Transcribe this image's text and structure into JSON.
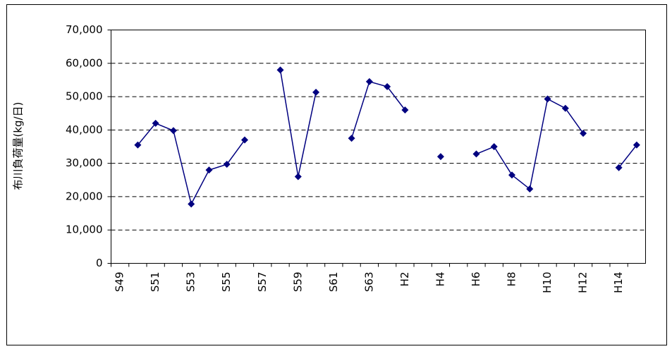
{
  "chart_data": {
    "type": "line",
    "y_label": "布川負荷量(kg/日)",
    "categories": [
      "S49",
      null,
      "S51",
      null,
      "S53",
      null,
      "S55",
      null,
      "S57",
      null,
      "S59",
      null,
      "S61",
      null,
      "S63",
      null,
      "H2",
      null,
      "H4",
      null,
      "H6",
      null,
      "H8",
      null,
      "H10",
      null,
      "H12",
      null,
      "H14",
      null
    ],
    "values": [
      null,
      35500,
      42000,
      39800,
      17800,
      28000,
      29700,
      37000,
      null,
      58000,
      26000,
      51300,
      null,
      37500,
      54500,
      53000,
      46000,
      null,
      32000,
      null,
      32800,
      35000,
      26500,
      22300,
      49300,
      46500,
      39000,
      null,
      28700,
      35500
    ],
    "color": "#000080",
    "ylim": [
      0,
      70000
    ],
    "yticks": [
      0,
      {
        "value": 10000,
        "label": "10,000"
      },
      {
        "value": 20000,
        "label": "20,000"
      },
      {
        "value": 30000,
        "label": "30,000"
      },
      {
        "value": 40000,
        "label": "40,000"
      },
      {
        "value": 50000,
        "label": "50,000"
      },
      {
        "value": 60000,
        "label": "60,000"
      },
      {
        "value": 70000,
        "label": "70,000"
      }
    ],
    "grid": true
  }
}
